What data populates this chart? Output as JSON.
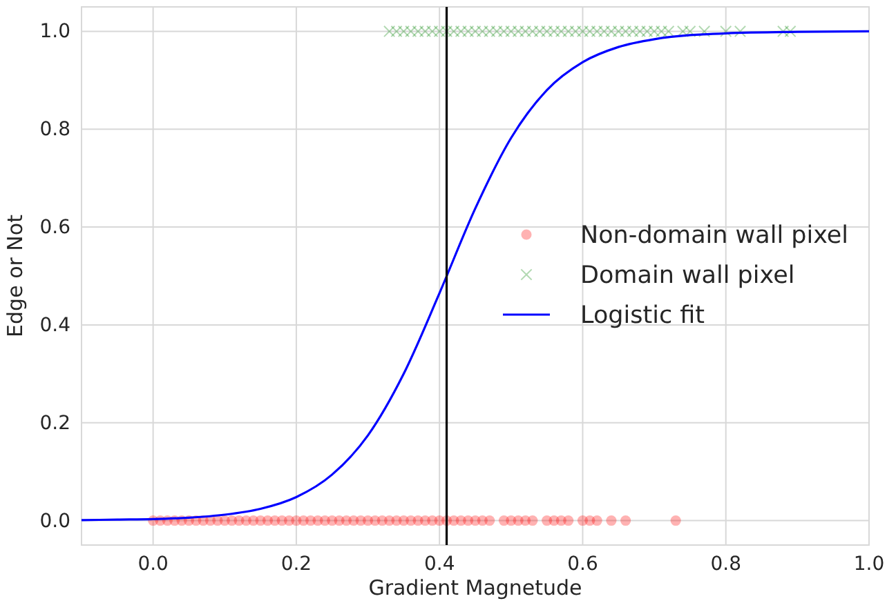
{
  "chart_data": {
    "type": "scatter",
    "xlabel": "Gradient Magnetude",
    "ylabel": "Edge or Not",
    "xlim": [
      -0.1,
      1.0
    ],
    "ylim": [
      -0.05,
      1.05
    ],
    "xticks": [
      {
        "value": 0,
        "label": "0.0"
      },
      {
        "value": 0.2,
        "label": "0.2"
      },
      {
        "value": 0.4,
        "label": "0.4"
      },
      {
        "value": 0.6,
        "label": "0.6"
      },
      {
        "value": 0.8,
        "label": "0.8"
      },
      {
        "value": 1,
        "label": "1.0"
      }
    ],
    "yticks": [
      {
        "value": 0,
        "label": "0.0"
      },
      {
        "value": 0.2,
        "label": "0.2"
      },
      {
        "value": 0.4,
        "label": "0.4"
      },
      {
        "value": 0.6,
        "label": "0.6"
      },
      {
        "value": 0.8,
        "label": "0.8"
      },
      {
        "value": 1,
        "label": "1.0"
      }
    ],
    "grid": true,
    "legend": "right",
    "ref_lines": [
      {
        "axis": "x",
        "value": 0.41,
        "color": "#000000"
      }
    ],
    "series": [
      {
        "name": "Non-domain wall pixel",
        "marker": "circle",
        "color": "#ff0000",
        "x": [
          0.0,
          0.01,
          0.02,
          0.03,
          0.04,
          0.05,
          0.06,
          0.07,
          0.08,
          0.09,
          0.1,
          0.11,
          0.12,
          0.13,
          0.14,
          0.15,
          0.16,
          0.17,
          0.18,
          0.19,
          0.2,
          0.21,
          0.22,
          0.23,
          0.24,
          0.25,
          0.26,
          0.27,
          0.28,
          0.29,
          0.3,
          0.31,
          0.32,
          0.33,
          0.34,
          0.35,
          0.36,
          0.37,
          0.38,
          0.39,
          0.4,
          0.41,
          0.42,
          0.43,
          0.44,
          0.45,
          0.46,
          0.47,
          0.49,
          0.5,
          0.51,
          0.52,
          0.53,
          0.55,
          0.56,
          0.57,
          0.58,
          0.6,
          0.61,
          0.62,
          0.64,
          0.66,
          0.73
        ],
        "values": [
          0,
          0,
          0,
          0,
          0,
          0,
          0,
          0,
          0,
          0,
          0,
          0,
          0,
          0,
          0,
          0,
          0,
          0,
          0,
          0,
          0,
          0,
          0,
          0,
          0,
          0,
          0,
          0,
          0,
          0,
          0,
          0,
          0,
          0,
          0,
          0,
          0,
          0,
          0,
          0,
          0,
          0,
          0,
          0,
          0,
          0,
          0,
          0,
          0,
          0,
          0,
          0,
          0,
          0,
          0,
          0,
          0,
          0,
          0,
          0,
          0,
          0,
          0
        ]
      },
      {
        "name": "Domain wall pixel",
        "marker": "cross",
        "color": "#008000",
        "x": [
          0.33,
          0.34,
          0.35,
          0.36,
          0.37,
          0.38,
          0.39,
          0.4,
          0.41,
          0.42,
          0.43,
          0.44,
          0.45,
          0.46,
          0.47,
          0.48,
          0.49,
          0.5,
          0.51,
          0.52,
          0.53,
          0.54,
          0.55,
          0.56,
          0.57,
          0.58,
          0.59,
          0.6,
          0.61,
          0.62,
          0.63,
          0.64,
          0.65,
          0.66,
          0.67,
          0.68,
          0.69,
          0.7,
          0.71,
          0.72,
          0.74,
          0.75,
          0.77,
          0.8,
          0.82,
          0.88,
          0.89
        ],
        "values": [
          1,
          1,
          1,
          1,
          1,
          1,
          1,
          1,
          1,
          1,
          1,
          1,
          1,
          1,
          1,
          1,
          1,
          1,
          1,
          1,
          1,
          1,
          1,
          1,
          1,
          1,
          1,
          1,
          1,
          1,
          1,
          1,
          1,
          1,
          1,
          1,
          1,
          1,
          1,
          1,
          1,
          1,
          1,
          1,
          1,
          1,
          1
        ]
      },
      {
        "name": "Logistic fit",
        "type": "line",
        "marker": "none",
        "line_style": "solid",
        "color": "#0000ff",
        "x": [
          -0.1,
          -0.05,
          0,
          0.05,
          0.1,
          0.15,
          0.2,
          0.25,
          0.3,
          0.35,
          0.4,
          0.45,
          0.5,
          0.55,
          0.6,
          0.65,
          0.7,
          0.8,
          0.9,
          1.0
        ],
        "values": [
          0.001,
          0.002,
          0.003,
          0.006,
          0.012,
          0.024,
          0.048,
          0.094,
          0.174,
          0.3,
          0.465,
          0.638,
          0.782,
          0.88,
          0.937,
          0.968,
          0.984,
          0.996,
          0.999,
          1.0
        ]
      }
    ]
  }
}
